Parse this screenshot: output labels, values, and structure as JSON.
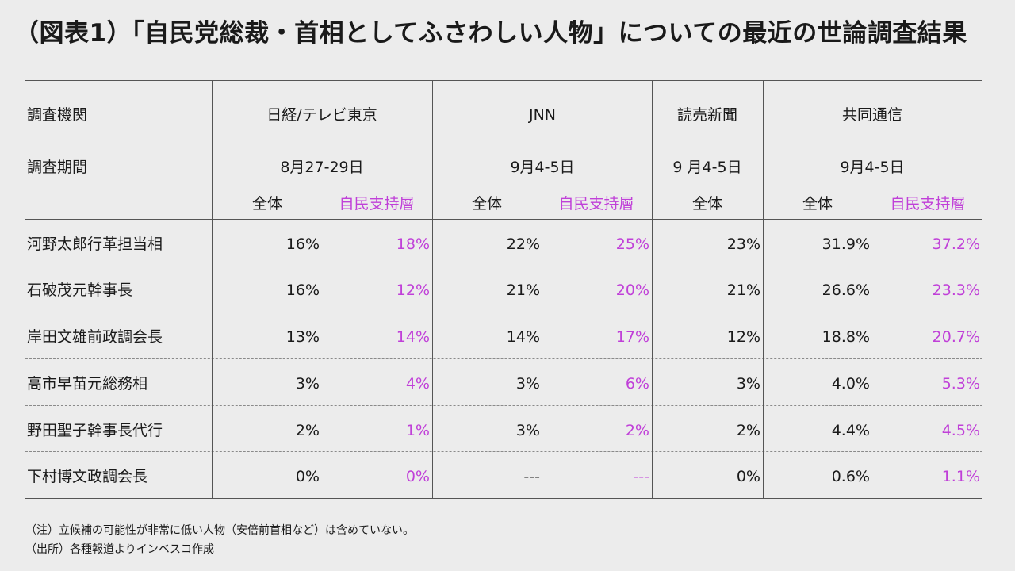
{
  "title": "（図表1）「自民党総裁・首相としてふさわしい人物」についての最近の世論調査結果",
  "header": {
    "org_label": "調査機関",
    "period_label": "調査期間",
    "orgs": [
      "日経/テレビ東京",
      "JNN",
      "読売新聞",
      "共同通信"
    ],
    "periods": [
      "8月27-29日",
      "9月4-5日",
      "9 月4-5日",
      "9月4-5日"
    ],
    "sub_all": "全体",
    "sub_ldp": "自民支持層"
  },
  "rows": [
    {
      "name": "河野太郎行革担当相",
      "values": [
        "16%",
        "18%",
        "22%",
        "25%",
        "23%",
        "31.9%",
        "37.2%"
      ]
    },
    {
      "name": "石破茂元幹事長",
      "values": [
        "16%",
        "12%",
        "21%",
        "20%",
        "21%",
        "26.6%",
        "23.3%"
      ]
    },
    {
      "name": "岸田文雄前政調会長",
      "values": [
        "13%",
        "14%",
        "14%",
        "17%",
        "12%",
        "18.8%",
        "20.7%"
      ]
    },
    {
      "name": "高市早苗元総務相",
      "values": [
        "3%",
        "4%",
        "3%",
        "6%",
        "3%",
        "4.0%",
        "5.3%"
      ]
    },
    {
      "name": "野田聖子幹事長代行",
      "values": [
        "2%",
        "1%",
        "3%",
        "2%",
        "2%",
        "4.4%",
        "4.5%"
      ]
    },
    {
      "name": "下村博文政調会長",
      "values": [
        "0%",
        "0%",
        "---",
        "---",
        "0%",
        "0.6%",
        "1.1%"
      ]
    }
  ],
  "notes": {
    "note1": "（注）立候補の可能性が非常に低い人物（安倍前首相など）は含めていない。",
    "note2": "（出所）各種報道よりインベスコ作成"
  },
  "colors": {
    "accent_ldp": "#c040d8",
    "background": "#ececec"
  }
}
